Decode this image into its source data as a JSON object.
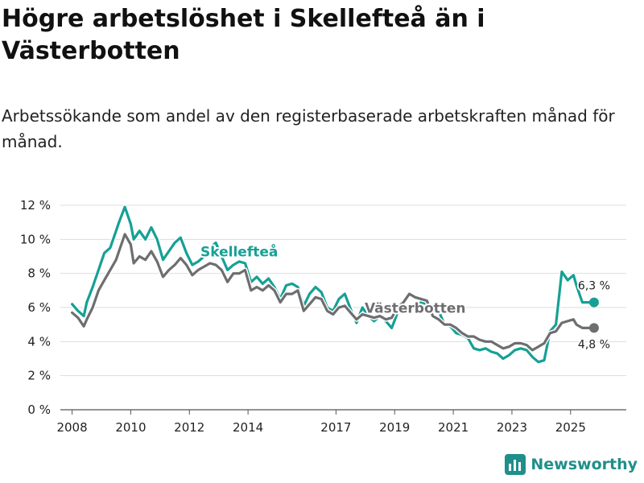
{
  "header": {
    "title": "Högre arbetslöshet i Skellefteå än i Västerbotten",
    "subtitle": "Arbetssökande som andel av den registerbaserade arbetskraften månad för månad."
  },
  "brand": {
    "name": "Newsworthy",
    "color": "#1f8f8a"
  },
  "chart_data": {
    "type": "line",
    "title": "Högre arbetslöshet i Skellefteå än i Västerbotten",
    "subtitle": "Arbetssökande som andel av den registerbaserade arbetskraften månad för månad.",
    "xlabel": "",
    "ylabel": "",
    "xlim": [
      2007.6,
      2026.9
    ],
    "ylim": [
      0,
      12
    ],
    "grid": true,
    "y_ticks": [
      0,
      2,
      4,
      6,
      8,
      10,
      12
    ],
    "y_tick_labels": [
      "0 %",
      "2 %",
      "4 %",
      "6 %",
      "8 %",
      "10 %",
      "12 %"
    ],
    "x_ticks": [
      2008,
      2010,
      2012,
      2014,
      2017,
      2019,
      2021,
      2023,
      2025
    ],
    "x_tick_labels": [
      "2008",
      "2010",
      "2012",
      "2014",
      "2017",
      "2019",
      "2021",
      "2023",
      "2025"
    ],
    "series": [
      {
        "name": "Skellefteå",
        "label": "Skellefteå",
        "color": "#16a095",
        "last_value_label": "6,3 %",
        "x": [
          2008.0,
          2008.2,
          2008.4,
          2008.5,
          2008.7,
          2008.9,
          2009.1,
          2009.3,
          2009.5,
          2009.6,
          2009.8,
          2010.0,
          2010.1,
          2010.3,
          2010.5,
          2010.7,
          2010.9,
          2011.1,
          2011.3,
          2011.5,
          2011.7,
          2011.9,
          2012.1,
          2012.3,
          2012.5,
          2012.7,
          2012.9,
          2013.1,
          2013.3,
          2013.5,
          2013.7,
          2013.9,
          2014.1,
          2014.3,
          2014.5,
          2014.7,
          2014.9,
          2015.1,
          2015.3,
          2015.5,
          2015.7,
          2015.9,
          2016.1,
          2016.3,
          2016.5,
          2016.7,
          2016.9,
          2017.1,
          2017.3,
          2017.5,
          2017.7,
          2017.9,
          2018.1,
          2018.3,
          2018.5,
          2018.7,
          2018.9,
          2019.1,
          2019.3,
          2019.5,
          2019.7,
          2019.9,
          2020.1,
          2020.3,
          2020.5,
          2020.7,
          2020.9,
          2021.1,
          2021.3,
          2021.5,
          2021.7,
          2021.9,
          2022.1,
          2022.3,
          2022.5,
          2022.7,
          2022.9,
          2023.1,
          2023.3,
          2023.5,
          2023.7,
          2023.9,
          2024.1,
          2024.3,
          2024.5,
          2024.7,
          2024.9,
          2025.1,
          2025.2,
          2025.4,
          2025.6,
          2025.8
        ],
        "values": [
          6.2,
          5.8,
          5.5,
          6.3,
          7.2,
          8.2,
          9.2,
          9.5,
          10.5,
          11.0,
          11.9,
          10.9,
          10.0,
          10.5,
          10.0,
          10.7,
          10.0,
          8.8,
          9.3,
          9.8,
          10.1,
          9.2,
          8.5,
          8.7,
          9.0,
          9.5,
          9.8,
          9.0,
          8.2,
          8.5,
          8.7,
          8.6,
          7.5,
          7.8,
          7.4,
          7.7,
          7.2,
          6.5,
          7.3,
          7.4,
          7.2,
          6.1,
          6.8,
          7.2,
          6.9,
          6.0,
          5.8,
          6.5,
          6.8,
          5.9,
          5.1,
          6.0,
          5.5,
          5.2,
          5.5,
          5.2,
          4.8,
          5.7,
          6.0,
          6.1,
          6.0,
          6.3,
          6.2,
          6.0,
          5.8,
          5.0,
          4.9,
          4.5,
          4.4,
          4.2,
          3.6,
          3.5,
          3.6,
          3.4,
          3.3,
          3.0,
          3.2,
          3.5,
          3.6,
          3.5,
          3.1,
          2.8,
          2.9,
          4.6,
          5.0,
          8.1,
          7.6,
          7.9,
          7.3,
          6.3,
          6.3,
          6.3
        ]
      },
      {
        "name": "Västerbotten",
        "label": "Västerbotten",
        "color": "#6e6e70",
        "last_value_label": "4,8 %",
        "x": [
          2008.0,
          2008.2,
          2008.4,
          2008.5,
          2008.7,
          2008.9,
          2009.1,
          2009.3,
          2009.5,
          2009.6,
          2009.8,
          2010.0,
          2010.1,
          2010.3,
          2010.5,
          2010.7,
          2010.9,
          2011.1,
          2011.3,
          2011.5,
          2011.7,
          2011.9,
          2012.1,
          2012.3,
          2012.5,
          2012.7,
          2012.9,
          2013.1,
          2013.3,
          2013.5,
          2013.7,
          2013.9,
          2014.1,
          2014.3,
          2014.5,
          2014.7,
          2014.9,
          2015.1,
          2015.3,
          2015.5,
          2015.7,
          2015.9,
          2016.1,
          2016.3,
          2016.5,
          2016.7,
          2016.9,
          2017.1,
          2017.3,
          2017.5,
          2017.7,
          2017.9,
          2018.1,
          2018.3,
          2018.5,
          2018.7,
          2018.9,
          2019.1,
          2019.3,
          2019.5,
          2019.7,
          2019.9,
          2020.1,
          2020.3,
          2020.5,
          2020.7,
          2020.9,
          2021.1,
          2021.3,
          2021.5,
          2021.7,
          2021.9,
          2022.1,
          2022.3,
          2022.5,
          2022.7,
          2022.9,
          2023.1,
          2023.3,
          2023.5,
          2023.7,
          2023.9,
          2024.1,
          2024.3,
          2024.5,
          2024.7,
          2024.9,
          2025.1,
          2025.2,
          2025.4,
          2025.6,
          2025.8
        ],
        "values": [
          5.7,
          5.4,
          4.9,
          5.3,
          6.0,
          7.0,
          7.6,
          8.2,
          8.8,
          9.3,
          10.3,
          9.7,
          8.6,
          9.0,
          8.8,
          9.3,
          8.7,
          7.8,
          8.2,
          8.5,
          8.9,
          8.5,
          7.9,
          8.2,
          8.4,
          8.6,
          8.5,
          8.2,
          7.5,
          8.0,
          8.0,
          8.2,
          7.0,
          7.2,
          7.0,
          7.3,
          7.0,
          6.3,
          6.8,
          6.8,
          7.0,
          5.8,
          6.2,
          6.6,
          6.5,
          5.8,
          5.6,
          6.0,
          6.1,
          5.7,
          5.3,
          5.6,
          5.5,
          5.4,
          5.5,
          5.3,
          5.4,
          6.0,
          6.3,
          6.8,
          6.6,
          6.5,
          6.4,
          5.5,
          5.3,
          5.0,
          5.0,
          4.8,
          4.5,
          4.3,
          4.3,
          4.1,
          4.0,
          4.0,
          3.8,
          3.6,
          3.7,
          3.9,
          3.9,
          3.8,
          3.5,
          3.7,
          3.9,
          4.5,
          4.6,
          5.1,
          5.2,
          5.3,
          5.0,
          4.8,
          4.8,
          4.8
        ]
      }
    ]
  }
}
